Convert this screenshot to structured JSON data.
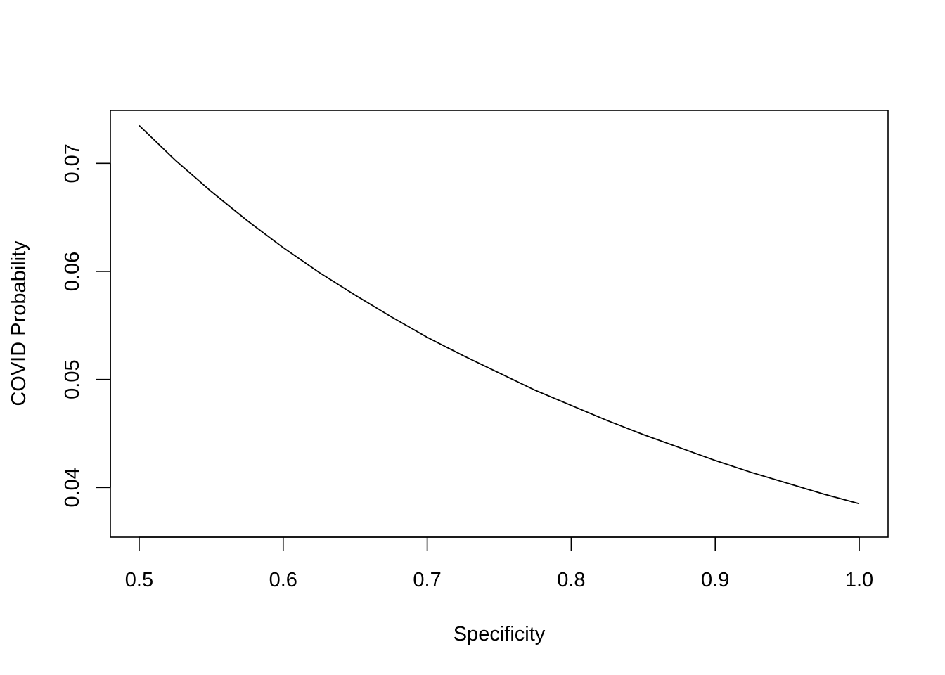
{
  "chart_data": {
    "type": "line",
    "title": "",
    "xlabel": "Specificity",
    "ylabel": "COVID Probability",
    "xlim": [
      0.48,
      1.02
    ],
    "ylim": [
      0.0354,
      0.0749
    ],
    "x_ticks": [
      "0.5",
      "0.6",
      "0.7",
      "0.8",
      "0.9",
      "1.0"
    ],
    "y_ticks": [
      "0.04",
      "0.05",
      "0.06",
      "0.07"
    ],
    "grid": false,
    "legend": "none",
    "line_color": "#000000",
    "series": [
      {
        "x": [
          0.5,
          0.525,
          0.55,
          0.575,
          0.6,
          0.625,
          0.65,
          0.675,
          0.7,
          0.725,
          0.75,
          0.775,
          0.8,
          0.825,
          0.85,
          0.875,
          0.9,
          0.925,
          0.95,
          0.975,
          1.0
        ],
        "values": [
          0.0735,
          0.0703,
          0.0674,
          0.0647,
          0.0622,
          0.0599,
          0.0578,
          0.0558,
          0.0539,
          0.0522,
          0.0506,
          0.049,
          0.0476,
          0.0462,
          0.0449,
          0.0437,
          0.0425,
          0.0414,
          0.0404,
          0.0394,
          0.0385
        ]
      }
    ]
  }
}
